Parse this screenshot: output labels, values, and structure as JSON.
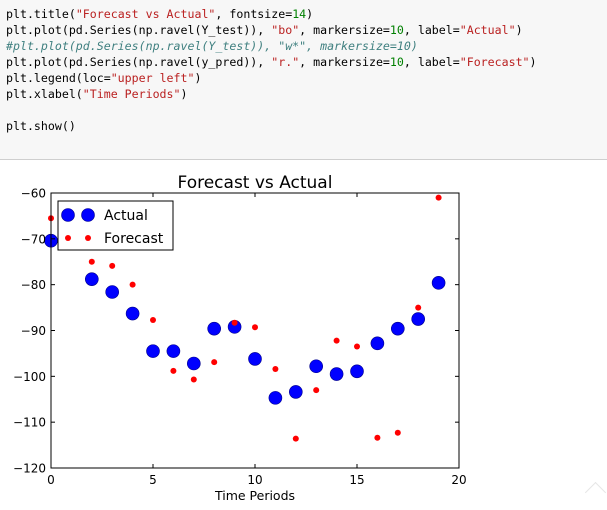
{
  "code_cell": {
    "lines": [
      [
        {
          "t": "plt.title(",
          "c": ""
        },
        {
          "t": "\"Forecast vs Actual\"",
          "c": "str"
        },
        {
          "t": ", fontsize=",
          "c": ""
        },
        {
          "t": "14",
          "c": "num"
        },
        {
          "t": ")",
          "c": ""
        }
      ],
      [
        {
          "t": "plt.plot(pd.Series(np.ravel(Y_test)), ",
          "c": ""
        },
        {
          "t": "\"bo\"",
          "c": "str"
        },
        {
          "t": ", markersize=",
          "c": ""
        },
        {
          "t": "10",
          "c": "num"
        },
        {
          "t": ", label=",
          "c": ""
        },
        {
          "t": "\"Actual\"",
          "c": "str"
        },
        {
          "t": ")",
          "c": ""
        }
      ],
      [
        {
          "t": "#plt.plot(pd.Series(np.ravel(Y_test)), \"w*\", markersize=10)",
          "c": "cmt"
        }
      ],
      [
        {
          "t": "plt.plot(pd.Series(np.ravel(y_pred)), ",
          "c": ""
        },
        {
          "t": "\"r.\"",
          "c": "str"
        },
        {
          "t": ", markersize=",
          "c": ""
        },
        {
          "t": "10",
          "c": "num"
        },
        {
          "t": ", label=",
          "c": ""
        },
        {
          "t": "\"Forecast\"",
          "c": "str"
        },
        {
          "t": ")",
          "c": ""
        }
      ],
      [
        {
          "t": "plt.legend(loc=",
          "c": ""
        },
        {
          "t": "\"upper left\"",
          "c": "str"
        },
        {
          "t": ")",
          "c": ""
        }
      ],
      [
        {
          "t": "plt.xlabel(",
          "c": ""
        },
        {
          "t": "\"Time Periods\"",
          "c": "str"
        },
        {
          "t": ")",
          "c": ""
        }
      ],
      [
        {
          "t": "",
          "c": ""
        }
      ],
      [
        {
          "t": "plt.show()",
          "c": ""
        }
      ]
    ]
  },
  "chart_data": {
    "type": "scatter",
    "title": "Forecast vs Actual",
    "xlabel": "Time Periods",
    "ylabel": "",
    "xlim": [
      0,
      20
    ],
    "ylim": [
      -120,
      -60
    ],
    "xticks": [
      0,
      5,
      10,
      15,
      20
    ],
    "yticks": [
      -120,
      -110,
      -100,
      -90,
      -80,
      -70,
      -60
    ],
    "legend": "upper-left",
    "grid": false,
    "series": [
      {
        "name": "Actual",
        "color": "#0000ff",
        "marker": "large-circle",
        "x": [
          0,
          2,
          3,
          4,
          5,
          6,
          7,
          8,
          9,
          10,
          11,
          12,
          13,
          14,
          15,
          16,
          17,
          18,
          19
        ],
        "y": [
          -70.4,
          -78.8,
          -81.6,
          -86.3,
          -94.5,
          -94.5,
          -97.2,
          -89.6,
          -89.2,
          -96.2,
          -104.7,
          -103.4,
          -97.8,
          -99.5,
          -98.9,
          -92.8,
          -89.6,
          -87.5,
          -79.6
        ]
      },
      {
        "name": "Forecast",
        "color": "#ff0000",
        "marker": "small-dot",
        "x": [
          0,
          2,
          3,
          4,
          5,
          6,
          7,
          8,
          9,
          10,
          11,
          12,
          13,
          14,
          15,
          16,
          17,
          18,
          19
        ],
        "y": [
          -65.5,
          -75,
          -75.9,
          -80,
          -87.7,
          -98.8,
          -100.7,
          -96.9,
          -88.3,
          -89.3,
          -98.4,
          -113.6,
          -103,
          -92.2,
          -93.5,
          -113.4,
          -112.3,
          -85,
          -61
        ]
      }
    ]
  }
}
